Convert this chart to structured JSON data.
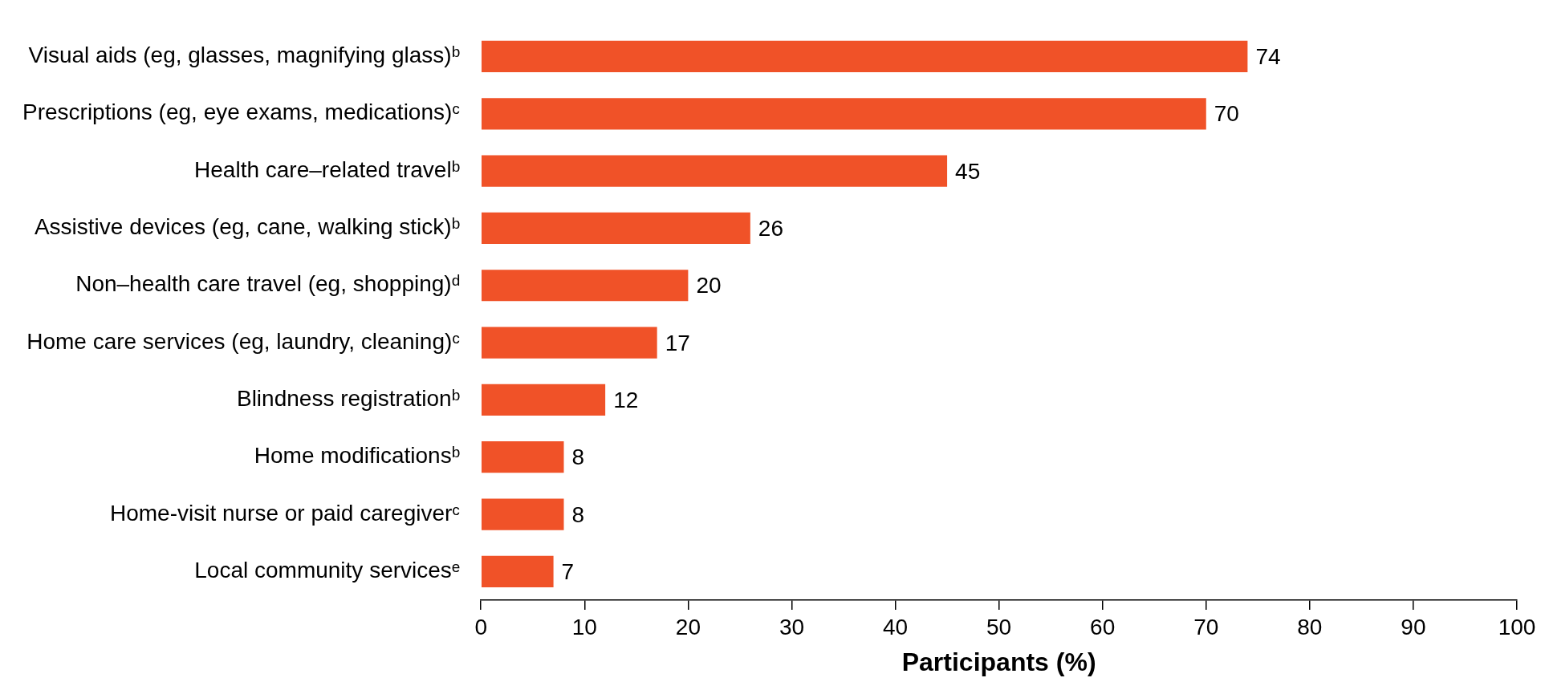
{
  "chart_data": {
    "type": "bar",
    "orientation": "horizontal",
    "xlabel": "Participants (%)",
    "categories": [
      "Visual aids (eg, glasses, magnifying glass)ᵇ",
      "Prescriptions (eg, eye exams, medications)ᶜ",
      "Health care–related travelᵇ",
      "Assistive devices (eg, cane, walking stick)ᵇ",
      "Non–health care travel (eg, shopping)ᵈ",
      "Home care services (eg, laundry, cleaning)ᶜ",
      "Blindness registrationᵇ",
      "Home modificationsᵇ",
      "Home-visit nurse or paid caregiverᶜ",
      "Local community servicesᵉ"
    ],
    "values": [
      74,
      70,
      45,
      26,
      20,
      17,
      12,
      8,
      8,
      7
    ],
    "color": "#f05228",
    "xlim": [
      0,
      100
    ],
    "xticks": [
      0,
      10,
      20,
      30,
      40,
      50,
      60,
      70,
      80,
      90,
      100
    ],
    "data_labels": true,
    "grid": false,
    "legend": false
  }
}
